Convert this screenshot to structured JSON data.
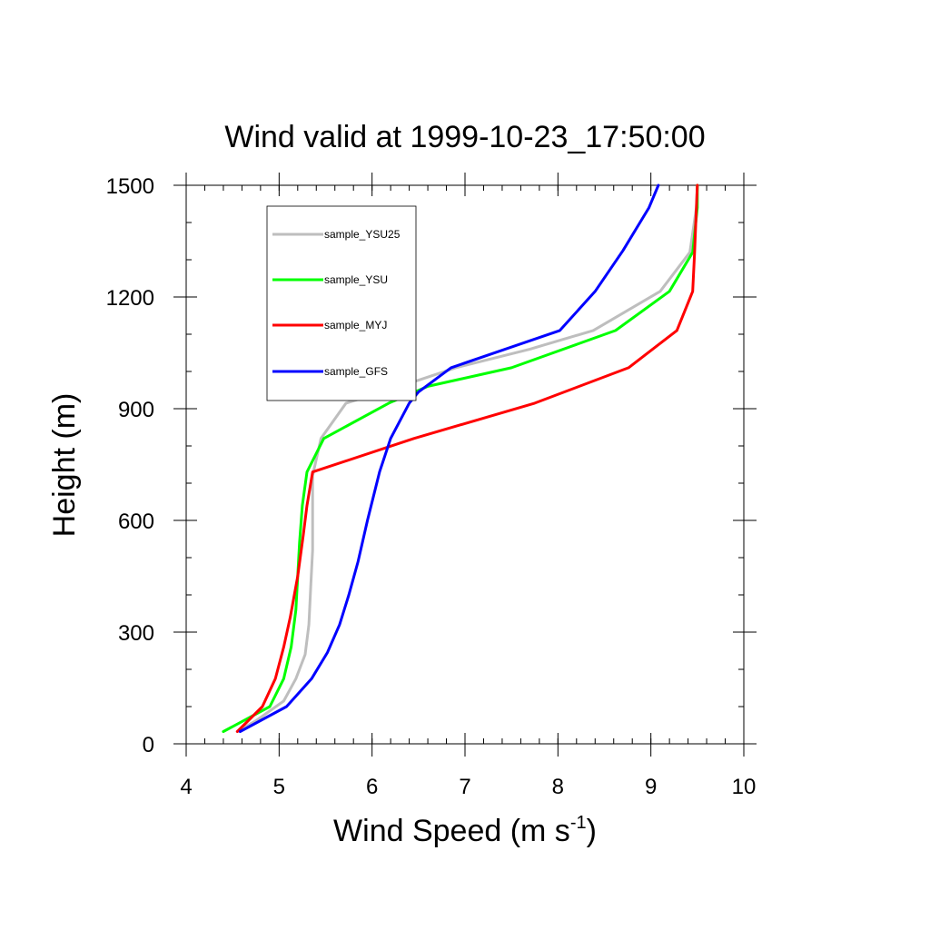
{
  "chart_data": {
    "type": "line",
    "title": "Wind valid at 1999-10-23_17:50:00",
    "xlabel": "Wind Speed (m s",
    "xlabel_sup": "-1",
    "xlabel_close": ")",
    "ylabel": "Height (m)",
    "xlim": [
      4,
      10
    ],
    "ylim": [
      0,
      1500
    ],
    "x_ticks": [
      4,
      5,
      6,
      7,
      8,
      9,
      10
    ],
    "y_ticks": [
      0,
      300,
      600,
      900,
      1200,
      1500
    ],
    "x_minor_step": 0.2,
    "y_minor_step": 100,
    "grid": false,
    "legend_position": "upper-left",
    "series": [
      {
        "name": "sample_YSU25",
        "color": "#bebebe",
        "points": [
          [
            4.55,
            33
          ],
          [
            4.75,
            62
          ],
          [
            5.05,
            115
          ],
          [
            5.18,
            175
          ],
          [
            5.28,
            240
          ],
          [
            5.32,
            320
          ],
          [
            5.34,
            420
          ],
          [
            5.36,
            520
          ],
          [
            5.36,
            640
          ],
          [
            5.36,
            720
          ],
          [
            5.45,
            820
          ],
          [
            5.72,
            915
          ],
          [
            6.3,
            960
          ],
          [
            6.9,
            1010
          ],
          [
            7.7,
            1060
          ],
          [
            8.38,
            1110
          ],
          [
            9.1,
            1215
          ],
          [
            9.42,
            1320
          ],
          [
            9.49,
            1440
          ],
          [
            9.5,
            1500
          ]
        ]
      },
      {
        "name": "sample_YSU",
        "color": "#00ff00",
        "points": [
          [
            4.4,
            33
          ],
          [
            4.9,
            100
          ],
          [
            5.05,
            175
          ],
          [
            5.13,
            260
          ],
          [
            5.18,
            360
          ],
          [
            5.2,
            450
          ],
          [
            5.22,
            540
          ],
          [
            5.25,
            640
          ],
          [
            5.3,
            730
          ],
          [
            5.48,
            820
          ],
          [
            6.18,
            915
          ],
          [
            6.6,
            960
          ],
          [
            7.5,
            1010
          ],
          [
            8.62,
            1110
          ],
          [
            9.2,
            1215
          ],
          [
            9.45,
            1320
          ],
          [
            9.5,
            1440
          ],
          [
            9.5,
            1500
          ]
        ]
      },
      {
        "name": "sample_MYJ",
        "color": "#ff0000",
        "points": [
          [
            4.55,
            33
          ],
          [
            4.82,
            100
          ],
          [
            4.96,
            175
          ],
          [
            5.05,
            260
          ],
          [
            5.12,
            340
          ],
          [
            5.2,
            450
          ],
          [
            5.26,
            560
          ],
          [
            5.3,
            640
          ],
          [
            5.36,
            730
          ],
          [
            6.45,
            820
          ],
          [
            7.75,
            915
          ],
          [
            8.76,
            1010
          ],
          [
            9.28,
            1110
          ],
          [
            9.45,
            1215
          ],
          [
            9.47,
            1320
          ],
          [
            9.5,
            1500
          ]
        ]
      },
      {
        "name": "sample_GFS",
        "color": "#0000ff",
        "points": [
          [
            4.58,
            33
          ],
          [
            5.08,
            100
          ],
          [
            5.35,
            175
          ],
          [
            5.52,
            245
          ],
          [
            5.65,
            320
          ],
          [
            5.75,
            400
          ],
          [
            5.85,
            490
          ],
          [
            5.95,
            600
          ],
          [
            6.08,
            730
          ],
          [
            6.2,
            820
          ],
          [
            6.4,
            915
          ],
          [
            6.5,
            945
          ],
          [
            6.85,
            1010
          ],
          [
            8.02,
            1110
          ],
          [
            8.4,
            1215
          ],
          [
            8.7,
            1325
          ],
          [
            8.98,
            1440
          ],
          [
            9.08,
            1500
          ]
        ]
      }
    ]
  }
}
